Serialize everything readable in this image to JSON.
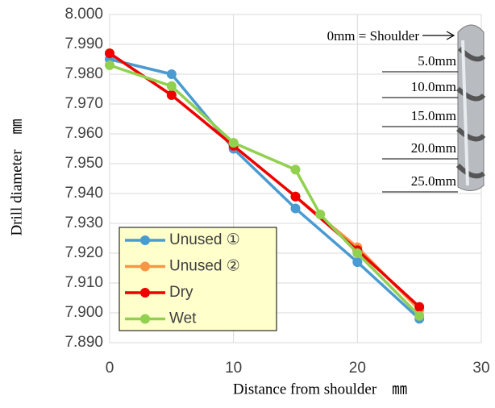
{
  "chart_data": {
    "type": "line",
    "x_label": "Distance from shoulder　㎜",
    "y_label": "Drill diameter　㎜",
    "xlim": [
      0,
      30
    ],
    "xticks": [
      0,
      10,
      20,
      30
    ],
    "ylim": [
      7.89,
      8.0
    ],
    "yticks": [
      {
        "value": 7.89,
        "label": "7.890"
      },
      {
        "value": 7.9,
        "label": "7.900"
      },
      {
        "value": 7.91,
        "label": "7.910"
      },
      {
        "value": 7.92,
        "label": "7.920"
      },
      {
        "value": 7.93,
        "label": "7.930"
      },
      {
        "value": 7.94,
        "label": "7.940"
      },
      {
        "value": 7.95,
        "label": "7.950"
      },
      {
        "value": 7.96,
        "label": "7.960"
      },
      {
        "value": 7.97,
        "label": "7.970"
      },
      {
        "value": 7.98,
        "label": "7.980"
      },
      {
        "value": 7.99,
        "label": "7.990"
      },
      {
        "value": 8.0,
        "label": "8.000"
      }
    ],
    "grid": true,
    "series": [
      {
        "name": "Unused ①",
        "color": "#4a9bd1",
        "x": [
          0,
          5,
          10,
          15,
          20,
          25
        ],
        "values": [
          7.985,
          7.98,
          7.955,
          7.935,
          7.917,
          7.898
        ]
      },
      {
        "name": "Unused ②",
        "color": "#f79646",
        "x": [
          0,
          5,
          10,
          15,
          20,
          25
        ],
        "values": [
          7.987,
          7.973,
          7.956,
          7.939,
          7.922,
          7.901
        ]
      },
      {
        "name": "Dry",
        "color": "#ee0000",
        "x": [
          0,
          5,
          10,
          15,
          20,
          25
        ],
        "values": [
          7.987,
          7.973,
          7.956,
          7.939,
          7.921,
          7.902
        ]
      },
      {
        "name": "Wet",
        "color": "#92d050",
        "x": [
          0,
          5,
          10,
          15,
          17,
          20,
          25
        ],
        "values": [
          7.983,
          7.976,
          7.957,
          7.948,
          7.933,
          7.92,
          7.899
        ]
      }
    ],
    "annotations": [
      "0mm = Shoulder",
      "5.0mm",
      "10.0mm",
      "15.0mm",
      "20.0mm",
      "25.0mm"
    ]
  }
}
